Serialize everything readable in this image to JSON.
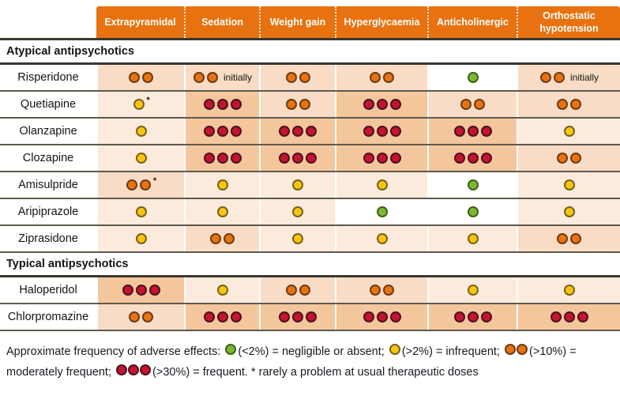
{
  "chart_data": {
    "type": "table",
    "header_bg": "#e8720f",
    "columns": [
      "Extrapyramidal",
      "Sedation",
      "Weight gain",
      "Hyperglycaemia",
      "Anticholinergic",
      "Orthostatic hypotension"
    ],
    "rows": [
      {
        "type": "section",
        "label": "Atypical antipsychotics"
      },
      {
        "type": "drug",
        "label": "Risperidone",
        "cells": [
          {
            "code": "O"
          },
          {
            "code": "O",
            "note": "initially"
          },
          {
            "code": "O"
          },
          {
            "code": "O"
          },
          {
            "code": "G"
          },
          {
            "code": "O",
            "note": "initially"
          }
        ]
      },
      {
        "type": "drug",
        "label": "Quetiapine",
        "cells": [
          {
            "code": "Y",
            "star": true
          },
          {
            "code": "R"
          },
          {
            "code": "O"
          },
          {
            "code": "R"
          },
          {
            "code": "O"
          },
          {
            "code": "O"
          }
        ]
      },
      {
        "type": "drug",
        "label": "Olanzapine",
        "cells": [
          {
            "code": "Y"
          },
          {
            "code": "R"
          },
          {
            "code": "R"
          },
          {
            "code": "R"
          },
          {
            "code": "R"
          },
          {
            "code": "Y"
          }
        ]
      },
      {
        "type": "drug",
        "label": "Clozapine",
        "cells": [
          {
            "code": "Y"
          },
          {
            "code": "R"
          },
          {
            "code": "R"
          },
          {
            "code": "R"
          },
          {
            "code": "R"
          },
          {
            "code": "O"
          }
        ]
      },
      {
        "type": "drug",
        "label": "Amisulpride",
        "cells": [
          {
            "code": "O",
            "star": true
          },
          {
            "code": "Y"
          },
          {
            "code": "Y"
          },
          {
            "code": "Y"
          },
          {
            "code": "G"
          },
          {
            "code": "Y"
          }
        ]
      },
      {
        "type": "drug",
        "label": "Aripiprazole",
        "cells": [
          {
            "code": "Y"
          },
          {
            "code": "Y"
          },
          {
            "code": "Y"
          },
          {
            "code": "G"
          },
          {
            "code": "G"
          },
          {
            "code": "Y"
          }
        ]
      },
      {
        "type": "drug",
        "label": "Ziprasidone",
        "cells": [
          {
            "code": "Y"
          },
          {
            "code": "O"
          },
          {
            "code": "Y"
          },
          {
            "code": "Y"
          },
          {
            "code": "Y"
          },
          {
            "code": "O"
          }
        ]
      },
      {
        "type": "section",
        "label": "Typical antipsychotics"
      },
      {
        "type": "drug",
        "label": "Haloperidol",
        "cells": [
          {
            "code": "R"
          },
          {
            "code": "Y"
          },
          {
            "code": "O"
          },
          {
            "code": "O"
          },
          {
            "code": "Y"
          },
          {
            "code": "Y"
          }
        ]
      },
      {
        "type": "drug",
        "label": "Chlorpromazine",
        "cells": [
          {
            "code": "O"
          },
          {
            "code": "R"
          },
          {
            "code": "R"
          },
          {
            "code": "R"
          },
          {
            "code": "R"
          },
          {
            "code": "R"
          }
        ]
      }
    ],
    "severity_key": {
      "G": {
        "dots": 1,
        "label": "negligible or absent",
        "threshold": "(<2%)",
        "color": "#7bb831",
        "border": "#41601a",
        "cell_bg": "#ffffff"
      },
      "Y": {
        "dots": 1,
        "label": "infrequent",
        "threshold": "(>2%)",
        "color": "#fbc411",
        "border": "#76621c",
        "cell_bg": "#fcebdd"
      },
      "O": {
        "dots": 2,
        "label": "moderately frequent",
        "threshold": "(>10%)",
        "color": "#e87410",
        "border": "#6e3a16",
        "cell_bg": "#f9dcc5"
      },
      "R": {
        "dots": 3,
        "label": "frequent",
        "threshold": "(>30%)",
        "color": "#c4142f",
        "border": "#4c1120",
        "cell_bg": "#f3c69c"
      }
    },
    "legend_parts": [
      {
        "text": "Approximate frequency of adverse effects: "
      },
      {
        "dots": "G"
      },
      {
        "text": "(<2%) = negligible or absent; "
      },
      {
        "dots": "Y"
      },
      {
        "text": "(>2%) = infrequent; "
      },
      {
        "dots": "O"
      },
      {
        "text": "(>10%) = moderately frequent; "
      },
      {
        "dots": "R"
      },
      {
        "text": "(>30%) = frequent. * rarely a problem at usual therapeutic doses"
      }
    ]
  }
}
